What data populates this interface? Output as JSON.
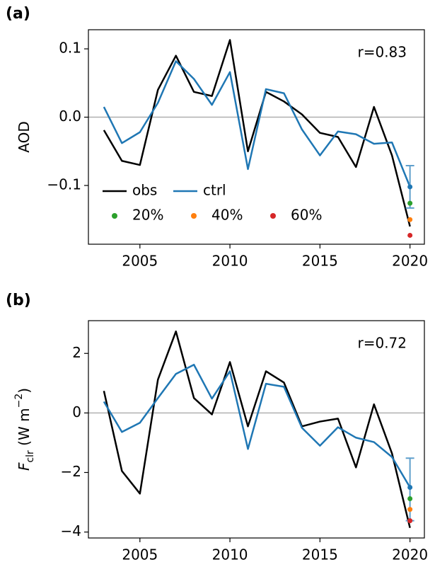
{
  "chart_data": [
    {
      "type": "line",
      "panel_label": "(a)",
      "annotation": "r=0.83",
      "ylabel_parts": [
        {
          "text": "AOD"
        }
      ],
      "x": [
        2003,
        2004,
        2005,
        2006,
        2007,
        2008,
        2009,
        2010,
        2011,
        2012,
        2013,
        2014,
        2015,
        2016,
        2017,
        2018,
        2019,
        2020
      ],
      "xlim": [
        2002.14,
        2020.8
      ],
      "xticks": [
        2005,
        2010,
        2015,
        2020
      ],
      "ylim": [
        -0.186,
        0.128
      ],
      "yticks": [
        {
          "value": -0.1,
          "label": "−0.1"
        },
        {
          "value": 0,
          "label": "0.0"
        },
        {
          "value": 0.1,
          "label": "0.1"
        }
      ],
      "zero_line": true,
      "legend": true,
      "series": [
        {
          "name": "obs",
          "color": "#000000",
          "values": [
            -0.019,
            -0.064,
            -0.07,
            0.04,
            0.09,
            0.037,
            0.031,
            0.113,
            -0.05,
            0.037,
            0.023,
            0.004,
            -0.023,
            -0.029,
            -0.073,
            0.015,
            -0.056,
            -0.16
          ]
        },
        {
          "name": "ctrl",
          "color": "#1f77b4",
          "values": [
            0.015,
            -0.038,
            -0.022,
            0.021,
            0.082,
            0.056,
            0.018,
            0.066,
            -0.076,
            0.041,
            0.035,
            -0.018,
            -0.056,
            -0.021,
            -0.025,
            -0.039,
            -0.037,
            -0.102
          ],
          "errorbar": {
            "x": 2020,
            "high": -0.071,
            "low": -0.133,
            "color": "#5f9fcc"
          }
        }
      ],
      "points": [
        {
          "name": "20%",
          "color": "#2ca02c",
          "x": 2020,
          "value": -0.126
        },
        {
          "name": "40%",
          "color": "#ff7f0e",
          "x": 2020,
          "value": -0.15
        },
        {
          "name": "60%",
          "color": "#d62728",
          "x": 2020,
          "value": -0.173
        }
      ]
    },
    {
      "type": "line",
      "panel_label": "(b)",
      "annotation": "r=0.72",
      "ylabel_parts": [
        {
          "text": "F",
          "style": "italic"
        },
        {
          "text": "clr",
          "style": "sub"
        },
        {
          "text": " (W m"
        },
        {
          "text": "−2",
          "style": "sup"
        },
        {
          "text": ")"
        }
      ],
      "x": [
        2003,
        2004,
        2005,
        2006,
        2007,
        2008,
        2009,
        2010,
        2011,
        2012,
        2013,
        2014,
        2015,
        2016,
        2017,
        2018,
        2019,
        2020
      ],
      "xlim": [
        2002.14,
        2020.8
      ],
      "xticks": [
        2005,
        2010,
        2015,
        2020
      ],
      "ylim": [
        -4.2,
        3.1
      ],
      "yticks": [
        {
          "value": -4,
          "label": "−4"
        },
        {
          "value": -2,
          "label": "−2"
        },
        0,
        2
      ],
      "zero_line": true,
      "legend": false,
      "series": [
        {
          "color": "#000000",
          "values": [
            0.74,
            -1.95,
            -2.71,
            1.12,
            2.74,
            0.5,
            -0.05,
            1.71,
            -0.45,
            1.4,
            1.02,
            -0.45,
            -0.29,
            -0.19,
            -1.83,
            0.29,
            -1.36,
            -3.86
          ]
        },
        {
          "color": "#1f77b4",
          "values": [
            0.38,
            -0.64,
            -0.33,
            0.5,
            1.31,
            1.62,
            0.48,
            1.4,
            -1.21,
            0.98,
            0.88,
            -0.5,
            -1.1,
            -0.48,
            -0.83,
            -0.98,
            -1.48,
            -2.5
          ],
          "errorbar": {
            "x": 2020,
            "high": -1.52,
            "low": -3.62,
            "color": "#5f9fcc"
          }
        }
      ],
      "points": [
        {
          "color": "#2ca02c",
          "x": 2020,
          "value": -2.88
        },
        {
          "color": "#ff7f0e",
          "x": 2020,
          "value": -3.24
        },
        {
          "color": "#d62728",
          "x": 2020,
          "value": -3.62
        }
      ]
    }
  ]
}
